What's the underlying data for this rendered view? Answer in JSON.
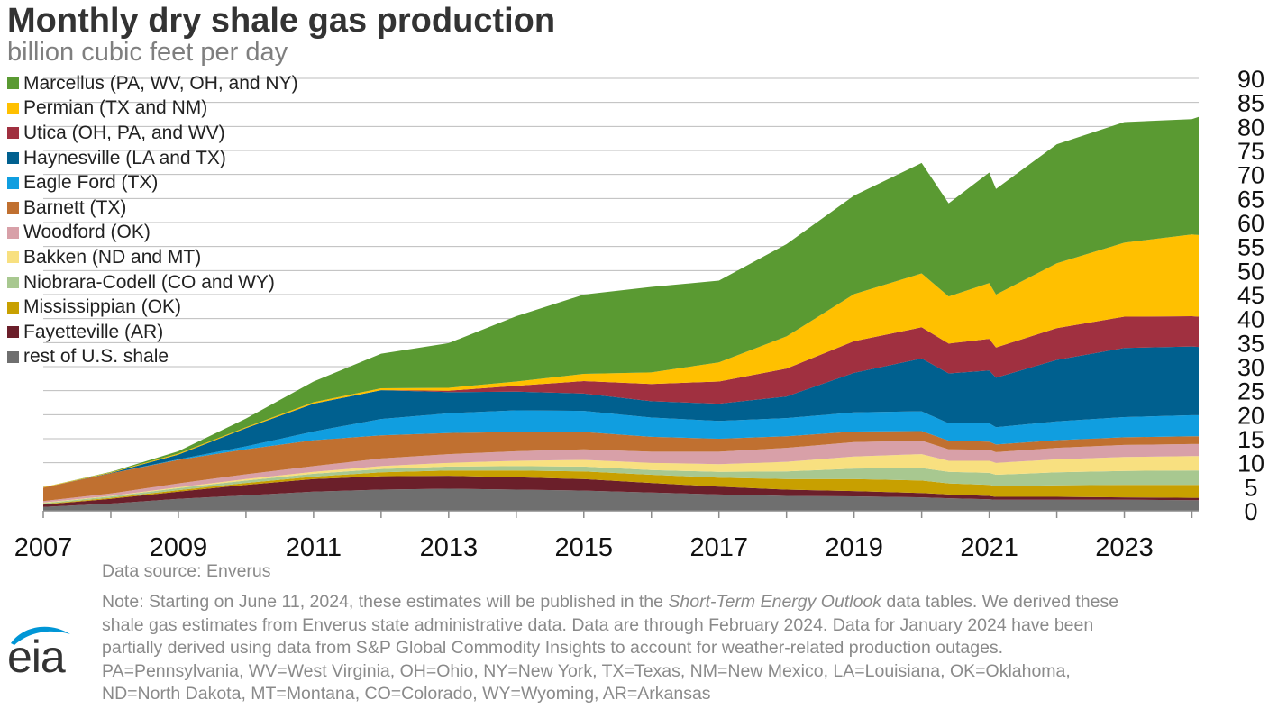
{
  "title": "Monthly dry shale gas production",
  "subtitle": "billion cubic feet per day",
  "source": "Data source: Enverus",
  "notes": {
    "line1_pre": "Note: Starting on June 11, 2024, these estimates will be published in the ",
    "line1_italic": "Short-Term Energy Outlook",
    "line1_post": " data tables. We derived these",
    "line2": "shale gas estimates from Enverus state administrative data. Data are through February 2024. Data for January 2024 have been",
    "line3": "partially derived using data from S&P Global Commodity Insights to account for weather-related production outages.",
    "line4": "PA=Pennsylvania, WV=West Virginia, OH=Ohio, NY=New York, TX=Texas, NM=New Mexico, LA=Louisiana, OK=Oklahoma,",
    "line5": "ND=North Dakota, MT=Montana, CO=Colorado, WY=Wyoming, AR=Arkansas"
  },
  "logo": {
    "text": "eia",
    "icon": "eia-logo-icon"
  },
  "chart_data": {
    "type": "area",
    "stacked": true,
    "ylim": [
      0,
      90
    ],
    "yticks": [
      0,
      5,
      10,
      15,
      20,
      25,
      30,
      35,
      40,
      45,
      50,
      55,
      60,
      65,
      70,
      75,
      80,
      85,
      90
    ],
    "xlim": [
      2007,
      2024.1
    ],
    "xticks": [
      "2007",
      "2009",
      "2011",
      "2013",
      "2015",
      "2017",
      "2019",
      "2021",
      "2023"
    ],
    "grid": true,
    "legend_placement": "top-left",
    "x": [
      2007,
      2008,
      2009,
      2010,
      2011,
      2012,
      2013,
      2014,
      2015,
      2016,
      2017,
      2018,
      2019,
      2020,
      2020.4,
      2021,
      2021.1,
      2022,
      2023,
      2024,
      2024.1
    ],
    "series": [
      {
        "name": "rest of U.S. shale",
        "color": "#6f6f6f",
        "values": [
          0.8,
          1.5,
          2.5,
          3.2,
          4.0,
          4.4,
          4.6,
          4.4,
          4.2,
          3.8,
          3.4,
          3.1,
          3.0,
          2.8,
          2.6,
          2.4,
          2.3,
          2.3,
          2.3,
          2.2,
          2.2
        ]
      },
      {
        "name": "Fayetteville (AR)",
        "color": "#6b1f2a",
        "values": [
          0.5,
          1.0,
          1.5,
          2.2,
          2.6,
          2.8,
          2.7,
          2.6,
          2.4,
          2.0,
          1.6,
          1.3,
          1.1,
          0.9,
          0.8,
          0.7,
          0.6,
          0.6,
          0.5,
          0.5,
          0.5
        ]
      },
      {
        "name": "Mississippian (OK)",
        "color": "#c8a000",
        "values": [
          0.1,
          0.2,
          0.3,
          0.4,
          0.5,
          0.8,
          1.1,
          1.4,
          1.6,
          1.7,
          1.9,
          2.2,
          2.5,
          2.6,
          2.3,
          2.3,
          2.2,
          2.4,
          2.6,
          2.7,
          2.7
        ]
      },
      {
        "name": "Niobrara-Codell (CO and WY)",
        "color": "#a8c890",
        "values": [
          0.2,
          0.3,
          0.4,
          0.5,
          0.6,
          0.7,
          0.8,
          0.9,
          1.0,
          1.0,
          1.2,
          1.6,
          2.2,
          2.6,
          2.4,
          2.5,
          2.4,
          2.7,
          2.9,
          3.0,
          3.0
        ]
      },
      {
        "name": "Bakken (ND and MT)",
        "color": "#f8e080",
        "values": [
          0.1,
          0.1,
          0.2,
          0.3,
          0.4,
          0.6,
          0.8,
          1.1,
          1.4,
          1.5,
          1.6,
          2.0,
          2.5,
          2.9,
          2.3,
          2.5,
          2.5,
          2.7,
          2.9,
          3.0,
          3.0
        ]
      },
      {
        "name": "Woodford (OK)",
        "color": "#d8a0a8",
        "values": [
          0.3,
          0.5,
          0.8,
          1.0,
          1.2,
          1.6,
          1.8,
          2.0,
          2.2,
          2.3,
          2.6,
          2.9,
          3.0,
          2.8,
          2.4,
          2.3,
          2.2,
          2.4,
          2.5,
          2.5,
          2.5
        ]
      },
      {
        "name": "Barnett (TX)",
        "color": "#c07030",
        "values": [
          2.8,
          4.2,
          4.9,
          5.2,
          5.4,
          4.8,
          4.4,
          4.0,
          3.6,
          3.1,
          2.7,
          2.4,
          2.2,
          2.0,
          1.8,
          1.7,
          1.6,
          1.6,
          1.6,
          1.6,
          1.6
        ]
      },
      {
        "name": "Eagle Ford (TX)",
        "color": "#109ee0",
        "values": [
          0.0,
          0.0,
          0.1,
          0.6,
          1.8,
          3.4,
          4.1,
          4.5,
          4.4,
          4.0,
          3.7,
          3.8,
          4.0,
          4.1,
          3.6,
          3.8,
          3.6,
          3.9,
          4.2,
          4.4,
          4.4
        ]
      },
      {
        "name": "Haynesville (LA and TX)",
        "color": "#00608f",
        "values": [
          0.0,
          0.1,
          1.0,
          3.8,
          5.8,
          6.0,
          4.4,
          3.9,
          3.6,
          3.4,
          3.6,
          4.5,
          8.2,
          11.0,
          10.4,
          11.0,
          10.3,
          12.8,
          14.4,
          14.3,
          14.2
        ]
      },
      {
        "name": "Utica (OH, PA, and WV)",
        "color": "#a03040",
        "values": [
          0.0,
          0.0,
          0.0,
          0.0,
          0.0,
          0.0,
          0.3,
          1.2,
          2.6,
          3.6,
          4.6,
          5.8,
          6.6,
          6.5,
          6.2,
          6.6,
          6.3,
          6.6,
          6.5,
          6.3,
          6.3
        ]
      },
      {
        "name": "Permian (TX and NM)",
        "color": "#ffc000",
        "values": [
          0.1,
          0.1,
          0.2,
          0.2,
          0.3,
          0.4,
          0.6,
          0.9,
          1.5,
          2.4,
          4.0,
          6.7,
          9.8,
          11.2,
          9.8,
          11.6,
          11.0,
          13.5,
          15.4,
          17.0,
          17.0
        ]
      },
      {
        "name": "Marcellus (PA, WV, OH, and NY)",
        "color": "#5a9a32",
        "values": [
          0.0,
          0.1,
          0.5,
          1.8,
          4.3,
          7.2,
          9.3,
          13.6,
          16.5,
          17.8,
          17.0,
          19.2,
          20.5,
          23.0,
          19.4,
          23.0,
          22.0,
          24.8,
          25.1,
          24.0,
          24.6
        ]
      }
    ]
  }
}
